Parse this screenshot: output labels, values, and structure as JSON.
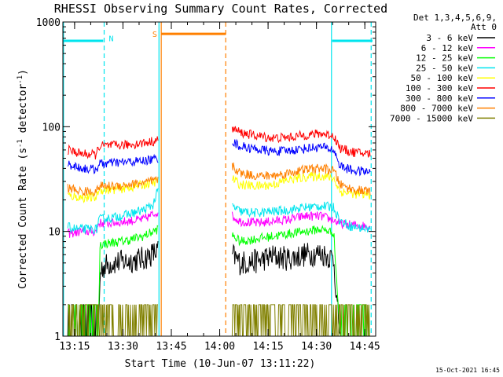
{
  "chart_data": {
    "type": "line",
    "title": "RHESSI Observing Summary Count Rates, Corrected",
    "xlabel": "Start Time (10-Jun-07 13:11:22)",
    "ylabel_main": "Corrected Count Rate (s",
    "ylabel_sup1": "-1",
    "ylabel_mid": " detector",
    "ylabel_sup2": "-1",
    "ylabel_end": ")",
    "yscale": "log",
    "ylim": [
      1,
      1000
    ],
    "xlim_minutes": [
      0,
      97
    ],
    "x_ticks": [
      {
        "label": "13:15",
        "minute": 3.633
      },
      {
        "label": "13:30",
        "minute": 18.633
      },
      {
        "label": "13:45",
        "minute": 33.633
      },
      {
        "label": "14:00",
        "minute": 48.633
      },
      {
        "label": "14:15",
        "minute": 63.633
      },
      {
        "label": "14:30",
        "minute": 78.633
      },
      {
        "label": "14:45",
        "minute": 93.633
      }
    ],
    "y_ticks": [
      {
        "label": "1",
        "value": 1
      },
      {
        "label": "10",
        "value": 10
      },
      {
        "label": "100",
        "value": 100
      },
      {
        "label": "1000",
        "value": 1000
      }
    ],
    "legend_header": [
      "Det 1,3,4,5,6,9,",
      "Att 0"
    ],
    "legend_position": "right",
    "footer_timestamp": "15-Oct-2021 16:45",
    "annotations": [
      {
        "text": "N",
        "minute": 15.0,
        "value": 700,
        "color": "#00e5ee"
      },
      {
        "text": "S",
        "minute": 28.5,
        "value": 770,
        "color": "#ff8000"
      }
    ],
    "night_bars": [
      {
        "minute_start": 0,
        "minute_end": 12.5,
        "value": 660,
        "color": "#00e5ee"
      },
      {
        "minute_start": 83.5,
        "minute_end": 96,
        "value": 660,
        "color": "#00e5ee"
      }
    ],
    "saa_bar": {
      "minute_start": 30.5,
      "minute_end": 50.5,
      "value": 770,
      "color": "#ff8000"
    },
    "vlines": [
      {
        "minute": 0.2,
        "color": "#00e5ee",
        "dashed": false
      },
      {
        "minute": 12.8,
        "color": "#00e5ee",
        "dashed": true
      },
      {
        "minute": 29.8,
        "color": "#00e5ee",
        "dashed": false
      },
      {
        "minute": 30.5,
        "color": "#ff8000",
        "dashed": false
      },
      {
        "minute": 50.5,
        "color": "#ff8000",
        "dashed": true
      },
      {
        "minute": 83.3,
        "color": "#00e5ee",
        "dashed": false
      },
      {
        "minute": 95.6,
        "color": "#00e5ee",
        "dashed": true
      }
    ],
    "data_segments": [
      {
        "minute_start": 1.5,
        "minute_end": 29.5
      },
      {
        "minute_start": 52.5,
        "minute_end": 95.5
      }
    ],
    "series": [
      {
        "name": "3 - 6 keV",
        "color": "#000000",
        "points": [
          [
            1.5,
            1.0
          ],
          [
            11.0,
            1.0
          ],
          [
            11.5,
            3.5
          ],
          [
            12.0,
            4.5
          ],
          [
            15,
            5.0
          ],
          [
            20,
            5.2
          ],
          [
            25,
            5.5
          ],
          [
            29.5,
            6.5
          ],
          [
            52.5,
            6.0
          ],
          [
            55,
            5.0
          ],
          [
            60,
            5.2
          ],
          [
            65,
            5.8
          ],
          [
            70,
            5.5
          ],
          [
            75,
            6.0
          ],
          [
            80,
            6.2
          ],
          [
            84,
            5.5
          ],
          [
            85,
            2.0
          ],
          [
            86,
            1.0
          ]
        ]
      },
      {
        "name": "6 - 12 keV",
        "color": "#ff00ff",
        "points": [
          [
            1.5,
            9.5
          ],
          [
            6,
            10
          ],
          [
            10.5,
            10
          ],
          [
            11,
            12
          ],
          [
            15,
            12
          ],
          [
            20,
            12.5
          ],
          [
            25,
            13
          ],
          [
            29.5,
            15.5
          ],
          [
            52.5,
            14
          ],
          [
            55,
            12.5
          ],
          [
            60,
            12
          ],
          [
            65,
            12.5
          ],
          [
            70,
            13
          ],
          [
            75,
            14
          ],
          [
            80,
            14
          ],
          [
            84,
            12.8
          ],
          [
            86,
            11.8
          ],
          [
            90,
            11.5
          ],
          [
            95.5,
            11.2
          ]
        ]
      },
      {
        "name": "12 - 25 keV",
        "color": "#00ff00",
        "points": [
          [
            1.5,
            1.0
          ],
          [
            11.0,
            1.0
          ],
          [
            11.5,
            7.5
          ],
          [
            15,
            7.8
          ],
          [
            20,
            8.2
          ],
          [
            25,
            9.0
          ],
          [
            29.5,
            10.5
          ],
          [
            52.5,
            9.2
          ],
          [
            55,
            8.0
          ],
          [
            60,
            8.5
          ],
          [
            65,
            9.0
          ],
          [
            70,
            9.5
          ],
          [
            75,
            10.0
          ],
          [
            80,
            10.5
          ],
          [
            84,
            9.8
          ],
          [
            85,
            3.0
          ],
          [
            86,
            1.0
          ],
          [
            95.5,
            1.0
          ]
        ]
      },
      {
        "name": "25 - 50 keV",
        "color": "#00e5ee",
        "points": [
          [
            1.5,
            11
          ],
          [
            5,
            10.5
          ],
          [
            10.5,
            10.5
          ],
          [
            11,
            13
          ],
          [
            15,
            13.5
          ],
          [
            20,
            14.5
          ],
          [
            25,
            16
          ],
          [
            28,
            18
          ],
          [
            29.5,
            25
          ],
          [
            52.5,
            17.5
          ],
          [
            55,
            15.5
          ],
          [
            60,
            15
          ],
          [
            65,
            15.5
          ],
          [
            70,
            16
          ],
          [
            75,
            17
          ],
          [
            80,
            17.5
          ],
          [
            84,
            17
          ],
          [
            86,
            12.5
          ],
          [
            90,
            11
          ],
          [
            95.5,
            10.5
          ]
        ]
      },
      {
        "name": "50 - 100 keV",
        "color": "#ffff00",
        "points": [
          [
            1.5,
            22
          ],
          [
            6,
            21
          ],
          [
            10.5,
            21
          ],
          [
            11,
            25
          ],
          [
            15,
            25
          ],
          [
            20,
            26
          ],
          [
            25,
            28
          ],
          [
            29.5,
            30
          ],
          [
            52.5,
            32
          ],
          [
            55,
            28
          ],
          [
            60,
            27
          ],
          [
            65,
            28
          ],
          [
            70,
            31
          ],
          [
            75,
            33
          ],
          [
            80,
            34
          ],
          [
            84,
            32
          ],
          [
            86,
            24
          ],
          [
            90,
            23
          ],
          [
            95.5,
            22
          ]
        ]
      },
      {
        "name": "100 - 300 keV",
        "color": "#ff0000",
        "points": [
          [
            1.5,
            60
          ],
          [
            6,
            55
          ],
          [
            10.5,
            54
          ],
          [
            11,
            65
          ],
          [
            15,
            66
          ],
          [
            20,
            67
          ],
          [
            25,
            70
          ],
          [
            29.5,
            74
          ],
          [
            52.5,
            97
          ],
          [
            55,
            88
          ],
          [
            60,
            82
          ],
          [
            65,
            78
          ],
          [
            70,
            79
          ],
          [
            75,
            83
          ],
          [
            80,
            86
          ],
          [
            84,
            82
          ],
          [
            86,
            62
          ],
          [
            90,
            57
          ],
          [
            95.5,
            55
          ]
        ]
      },
      {
        "name": "300 - 800 keV",
        "color": "#0000ff",
        "points": [
          [
            1.5,
            44
          ],
          [
            6,
            40
          ],
          [
            10.5,
            39
          ],
          [
            11,
            44
          ],
          [
            15,
            45
          ],
          [
            20,
            46
          ],
          [
            25,
            47
          ],
          [
            29.5,
            50
          ],
          [
            52.5,
            72
          ],
          [
            55,
            65
          ],
          [
            60,
            61
          ],
          [
            65,
            58
          ],
          [
            70,
            59
          ],
          [
            75,
            62
          ],
          [
            80,
            64
          ],
          [
            84,
            60
          ],
          [
            86,
            42
          ],
          [
            90,
            38
          ],
          [
            95.5,
            37
          ]
        ]
      },
      {
        "name": "800 - 7000 keV",
        "color": "#ff8000",
        "points": [
          [
            1.5,
            26
          ],
          [
            6,
            24
          ],
          [
            10.5,
            24
          ],
          [
            11,
            27
          ],
          [
            15,
            27
          ],
          [
            20,
            28
          ],
          [
            25,
            29
          ],
          [
            29.5,
            31
          ],
          [
            52.5,
            42
          ],
          [
            55,
            36
          ],
          [
            60,
            34
          ],
          [
            65,
            34
          ],
          [
            70,
            36
          ],
          [
            75,
            39
          ],
          [
            80,
            40
          ],
          [
            84,
            38
          ],
          [
            86,
            28
          ],
          [
            90,
            25
          ],
          [
            95.5,
            24
          ]
        ]
      },
      {
        "name": "7000 - 15000 keV",
        "color": "#808000",
        "points": [
          [
            1.5,
            1.0
          ],
          [
            24,
            1.0
          ],
          [
            25,
            1.6
          ],
          [
            27,
            2.0
          ],
          [
            29.5,
            2.0
          ],
          [
            52.5,
            2.0
          ],
          [
            60,
            1.8
          ],
          [
            70,
            2.0
          ],
          [
            80,
            2.0
          ],
          [
            84,
            1.9
          ],
          [
            85,
            1.0
          ],
          [
            95.5,
            1.0
          ]
        ]
      }
    ]
  }
}
